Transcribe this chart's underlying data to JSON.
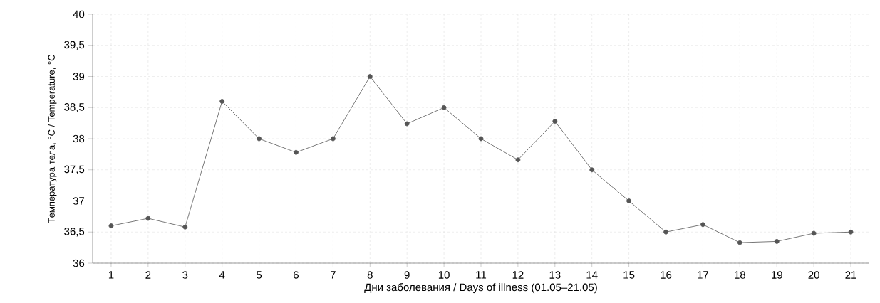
{
  "chart_data": {
    "type": "line",
    "xlabel": "Дни заболевания / Days of illness (01.05–21.05)",
    "ylabel": "Температура тела, °C / Temperature, °C",
    "categories": [
      "1",
      "2",
      "3",
      "4",
      "5",
      "6",
      "7",
      "8",
      "9",
      "10",
      "11",
      "12",
      "13",
      "14",
      "15",
      "16",
      "17",
      "18",
      "19",
      "20",
      "21"
    ],
    "series": [
      {
        "color": "#555555",
        "values": [
          36.6,
          36.72,
          36.58,
          38.6,
          38.0,
          37.78,
          38.0,
          39.0,
          38.24,
          38.5,
          38.0,
          37.66,
          38.28,
          37.5,
          37.0,
          36.5,
          36.62,
          36.33,
          36.35,
          36.48,
          36.5
        ]
      }
    ],
    "ylim": [
      36,
      40
    ],
    "yticks": [
      36,
      {
        "value": 36.5,
        "label": "36,5"
      },
      37,
      {
        "value": 37.5,
        "label": "37,5"
      },
      38,
      {
        "value": 38.5,
        "label": "38,5"
      },
      39,
      {
        "value": 39.5,
        "label": "39,5"
      },
      40
    ],
    "grid": true,
    "marker": "circle",
    "line_style": "solid"
  }
}
